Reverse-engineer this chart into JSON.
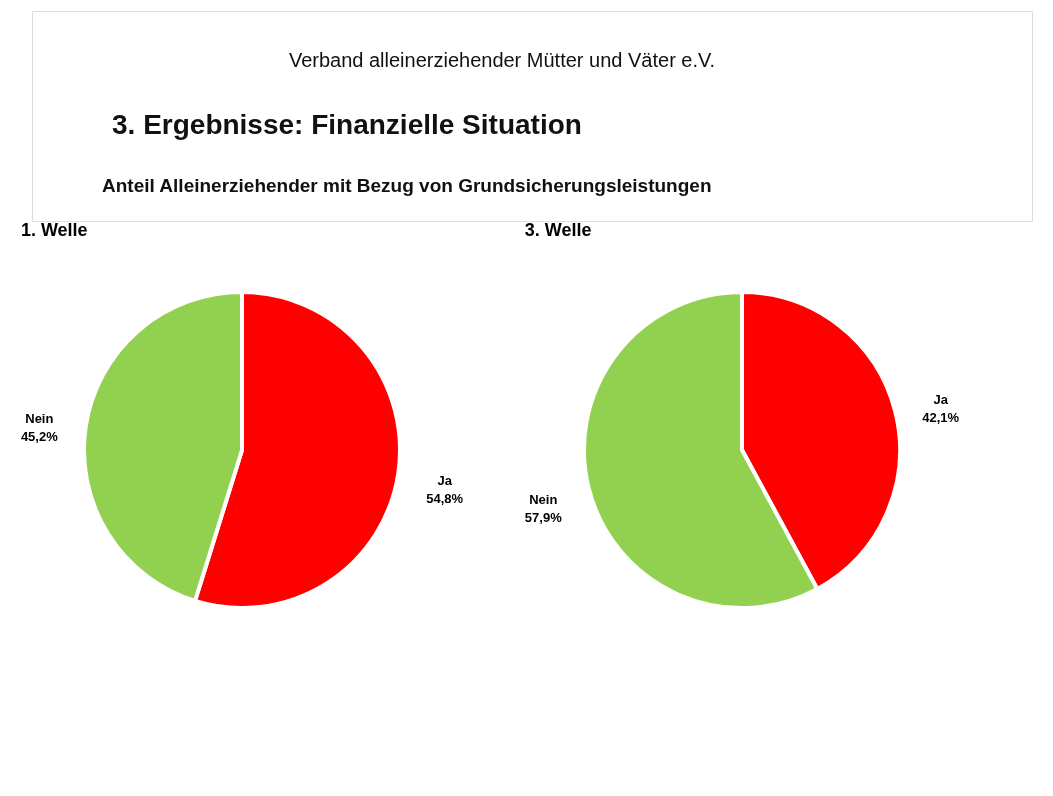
{
  "chart_data": [
    {
      "type": "pie",
      "title": "1. Welle",
      "annotations": [
        "Verband alleinerziehender Mütter und Väter e.V.",
        "3. Ergebnisse: Finanzielle Situation",
        "Anteil Alleinerziehender mit Bezug von Grundsicherungsleistungen"
      ],
      "categories": [
        "Ja",
        "Nein"
      ],
      "values": [
        54.8,
        45.2
      ],
      "colors": [
        "#ff0000",
        "#92d050"
      ],
      "value_labels": [
        "54,8%",
        "45,2%"
      ],
      "legend": false
    },
    {
      "type": "pie",
      "title": "3. Welle",
      "categories": [
        "Ja",
        "Nein"
      ],
      "values": [
        42.1,
        57.9
      ],
      "colors": [
        "#ff0000",
        "#92d050"
      ],
      "value_labels": [
        "42,1%",
        "57,9%"
      ],
      "legend": false
    }
  ]
}
